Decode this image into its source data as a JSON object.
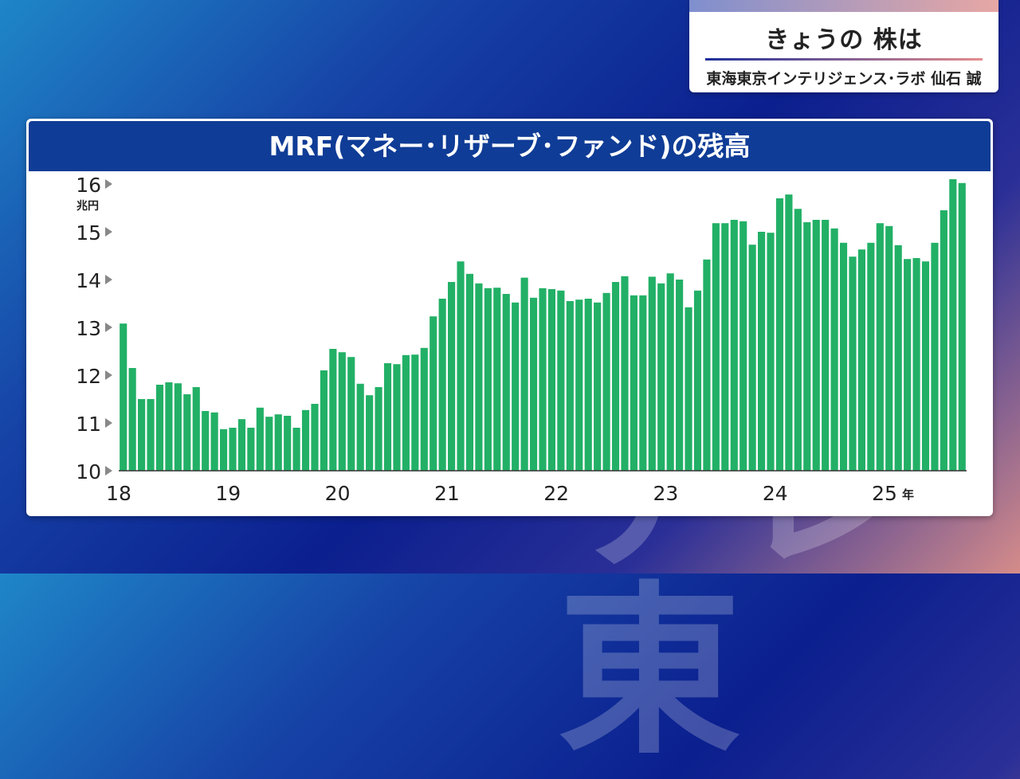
{
  "badge": {
    "title": "きょうの 株は",
    "subtitle": "東海東京インテリジェンス･ラボ 仙石 誠"
  },
  "watermark": "テレ東",
  "colors": {
    "bar": "#22b066",
    "header": "#0f3c96",
    "text": "#222222"
  },
  "chart_data": {
    "type": "bar",
    "title": "MRF(マネー･リザーブ･ファンド)の残高",
    "xlabel": "",
    "ylabel": "",
    "y_unit": "兆円",
    "x_unit": "年",
    "ylim": [
      10,
      16
    ],
    "yticks": [
      10,
      11,
      12,
      13,
      14,
      15,
      16
    ],
    "x_tick_labels": [
      "18",
      "19",
      "20",
      "21",
      "22",
      "23",
      "24",
      "25"
    ],
    "grid": false,
    "values": [
      13.08,
      12.15,
      11.5,
      11.5,
      11.8,
      11.85,
      11.83,
      11.6,
      11.75,
      11.25,
      11.22,
      10.87,
      10.9,
      11.08,
      10.9,
      11.32,
      11.13,
      11.18,
      11.15,
      10.9,
      11.27,
      11.4,
      12.1,
      12.55,
      12.48,
      12.38,
      11.82,
      11.58,
      11.75,
      12.25,
      12.23,
      12.42,
      12.43,
      12.57,
      13.23,
      13.6,
      13.95,
      14.38,
      14.12,
      13.92,
      13.82,
      13.83,
      13.7,
      13.52,
      14.04,
      13.62,
      13.82,
      13.8,
      13.77,
      13.55,
      13.58,
      13.6,
      13.52,
      13.72,
      13.95,
      14.07,
      13.67,
      13.67,
      14.06,
      13.92,
      14.13,
      14.0,
      13.42,
      13.77,
      14.42,
      15.18,
      15.18,
      15.25,
      15.22,
      14.73,
      15.0,
      14.98,
      15.7,
      15.78,
      15.48,
      15.2,
      15.25,
      15.25,
      15.07,
      14.77,
      14.48,
      14.63,
      14.77,
      15.18,
      15.12,
      14.72,
      14.43,
      14.45,
      14.38,
      14.77,
      15.45,
      16.1,
      16.02
    ]
  }
}
